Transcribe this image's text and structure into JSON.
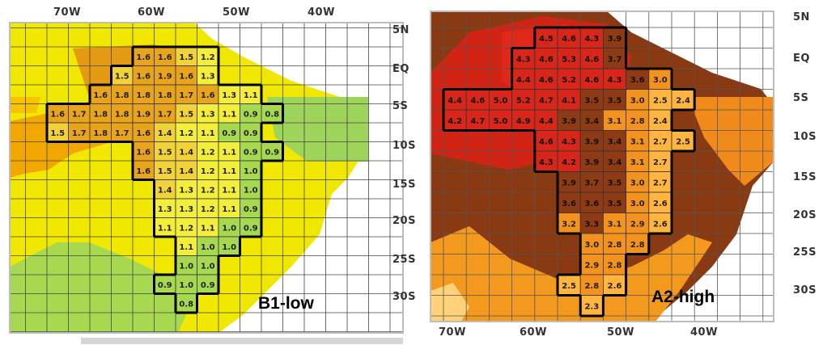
{
  "colors": {
    "b1_background": [
      "#f0e800",
      "#f4b400",
      "#d98d1a",
      "#9bd45a",
      "#ffffff"
    ],
    "b1_cell_colors": {
      "1.6+": "#e9a41e",
      "1.4-1.5": "#f2d23a",
      "1.1-1.3": "#f3ee3c",
      "<=1.0": "#a6d94f"
    },
    "a2_background": [
      "#d22414",
      "#8a3a12",
      "#f08a1a",
      "#ffb020",
      "#ffffff"
    ],
    "a2_cell_colors": {
      "4.0+": "#d8261a",
      "3.3-3.9": "#8e3a14",
      "2.8-3.2": "#f3921e",
      "<=2.7": "#ffb540"
    },
    "grid_line": "#333333",
    "border": "#000000"
  },
  "maps": [
    {
      "label": "B1-low",
      "lon_labels": [
        "70W",
        "60W",
        "50W",
        "40W"
      ],
      "lat_labels": [
        "5N",
        "EQ",
        "5S",
        "10S",
        "15S",
        "20S",
        "25S",
        "30S"
      ],
      "cells": [
        {
          "row": 0,
          "col": 4,
          "value": "1.6"
        },
        {
          "row": 0,
          "col": 5,
          "value": "1.6"
        },
        {
          "row": 0,
          "col": 6,
          "value": "1.5"
        },
        {
          "row": 0,
          "col": 7,
          "value": "1.2"
        },
        {
          "row": 1,
          "col": 3,
          "value": "1.5"
        },
        {
          "row": 1,
          "col": 4,
          "value": "1.6"
        },
        {
          "row": 1,
          "col": 5,
          "value": "1.9"
        },
        {
          "row": 1,
          "col": 6,
          "value": "1.6"
        },
        {
          "row": 1,
          "col": 7,
          "value": "1.3"
        },
        {
          "row": 2,
          "col": 2,
          "value": "1.6"
        },
        {
          "row": 2,
          "col": 3,
          "value": "1.8"
        },
        {
          "row": 2,
          "col": 4,
          "value": "1.8"
        },
        {
          "row": 2,
          "col": 5,
          "value": "1.8"
        },
        {
          "row": 2,
          "col": 6,
          "value": "1.7"
        },
        {
          "row": 2,
          "col": 7,
          "value": "1.6"
        },
        {
          "row": 2,
          "col": 8,
          "value": "1.3"
        },
        {
          "row": 2,
          "col": 9,
          "value": "1.1"
        },
        {
          "row": 3,
          "col": 0,
          "value": "1.6"
        },
        {
          "row": 3,
          "col": 1,
          "value": "1.7"
        },
        {
          "row": 3,
          "col": 2,
          "value": "1.8"
        },
        {
          "row": 3,
          "col": 3,
          "value": "1.8"
        },
        {
          "row": 3,
          "col": 4,
          "value": "1.9"
        },
        {
          "row": 3,
          "col": 5,
          "value": "1.7"
        },
        {
          "row": 3,
          "col": 6,
          "value": "1.5"
        },
        {
          "row": 3,
          "col": 7,
          "value": "1.3"
        },
        {
          "row": 3,
          "col": 8,
          "value": "1.1"
        },
        {
          "row": 3,
          "col": 9,
          "value": "0.9"
        },
        {
          "row": 3,
          "col": 10,
          "value": "0.8"
        },
        {
          "row": 4,
          "col": 0,
          "value": "1.5"
        },
        {
          "row": 4,
          "col": 1,
          "value": "1.7"
        },
        {
          "row": 4,
          "col": 2,
          "value": "1.8"
        },
        {
          "row": 4,
          "col": 3,
          "value": "1.7"
        },
        {
          "row": 4,
          "col": 4,
          "value": "1.6"
        },
        {
          "row": 4,
          "col": 5,
          "value": "1.4"
        },
        {
          "row": 4,
          "col": 6,
          "value": "1.2"
        },
        {
          "row": 4,
          "col": 7,
          "value": "1.1"
        },
        {
          "row": 4,
          "col": 8,
          "value": "0.9"
        },
        {
          "row": 4,
          "col": 9,
          "value": "0.9"
        },
        {
          "row": 5,
          "col": 4,
          "value": "1.6"
        },
        {
          "row": 5,
          "col": 5,
          "value": "1.5"
        },
        {
          "row": 5,
          "col": 6,
          "value": "1.4"
        },
        {
          "row": 5,
          "col": 7,
          "value": "1.2"
        },
        {
          "row": 5,
          "col": 8,
          "value": "1.1"
        },
        {
          "row": 5,
          "col": 9,
          "value": "0.9"
        },
        {
          "row": 5,
          "col": 10,
          "value": "0.9"
        },
        {
          "row": 6,
          "col": 4,
          "value": "1.6"
        },
        {
          "row": 6,
          "col": 5,
          "value": "1.5"
        },
        {
          "row": 6,
          "col": 6,
          "value": "1.4"
        },
        {
          "row": 6,
          "col": 7,
          "value": "1.2"
        },
        {
          "row": 6,
          "col": 8,
          "value": "1.1"
        },
        {
          "row": 6,
          "col": 9,
          "value": "1.0"
        },
        {
          "row": 7,
          "col": 5,
          "value": "1.4"
        },
        {
          "row": 7,
          "col": 6,
          "value": "1.3"
        },
        {
          "row": 7,
          "col": 7,
          "value": "1.2"
        },
        {
          "row": 7,
          "col": 8,
          "value": "1.1"
        },
        {
          "row": 7,
          "col": 9,
          "value": "1.0"
        },
        {
          "row": 8,
          "col": 5,
          "value": "1.3"
        },
        {
          "row": 8,
          "col": 6,
          "value": "1.3"
        },
        {
          "row": 8,
          "col": 7,
          "value": "1.2"
        },
        {
          "row": 8,
          "col": 8,
          "value": "1.1"
        },
        {
          "row": 8,
          "col": 9,
          "value": "0.9"
        },
        {
          "row": 9,
          "col": 5,
          "value": "1.1"
        },
        {
          "row": 9,
          "col": 6,
          "value": "1.2"
        },
        {
          "row": 9,
          "col": 7,
          "value": "1.1"
        },
        {
          "row": 9,
          "col": 8,
          "value": "1.0"
        },
        {
          "row": 9,
          "col": 9,
          "value": "0.9"
        },
        {
          "row": 10,
          "col": 6,
          "value": "1.1"
        },
        {
          "row": 10,
          "col": 7,
          "value": "1.0"
        },
        {
          "row": 10,
          "col": 8,
          "value": "1.0"
        },
        {
          "row": 11,
          "col": 6,
          "value": "1.0"
        },
        {
          "row": 11,
          "col": 7,
          "value": "1.0"
        },
        {
          "row": 12,
          "col": 5,
          "value": "0.9"
        },
        {
          "row": 12,
          "col": 6,
          "value": "1.0"
        },
        {
          "row": 12,
          "col": 7,
          "value": "0.9"
        },
        {
          "row": 13,
          "col": 6,
          "value": "0.8"
        }
      ]
    },
    {
      "label": "A2-high",
      "lon_labels": [
        "70W",
        "60W",
        "50W",
        "40W"
      ],
      "lat_labels": [
        "5N",
        "EQ",
        "5S",
        "10S",
        "15S",
        "20S",
        "25S",
        "30S"
      ],
      "cells": [
        {
          "row": 0,
          "col": 4,
          "value": "4.5"
        },
        {
          "row": 0,
          "col": 5,
          "value": "4.6"
        },
        {
          "row": 0,
          "col": 6,
          "value": "4.3"
        },
        {
          "row": 0,
          "col": 7,
          "value": "3.9"
        },
        {
          "row": 1,
          "col": 3,
          "value": "4.3"
        },
        {
          "row": 1,
          "col": 4,
          "value": "4.6"
        },
        {
          "row": 1,
          "col": 5,
          "value": "5.3"
        },
        {
          "row": 1,
          "col": 6,
          "value": "4.6"
        },
        {
          "row": 1,
          "col": 7,
          "value": "3.7"
        },
        {
          "row": 2,
          "col": 3,
          "value": "4.4"
        },
        {
          "row": 2,
          "col": 4,
          "value": "4.6"
        },
        {
          "row": 2,
          "col": 5,
          "value": "5.2"
        },
        {
          "row": 2,
          "col": 6,
          "value": "4.6"
        },
        {
          "row": 2,
          "col": 7,
          "value": "4.3"
        },
        {
          "row": 2,
          "col": 8,
          "value": "3.6"
        },
        {
          "row": 2,
          "col": 9,
          "value": "3.0"
        },
        {
          "row": 3,
          "col": 0,
          "value": "4.4"
        },
        {
          "row": 3,
          "col": 1,
          "value": "4.6"
        },
        {
          "row": 3,
          "col": 2,
          "value": "5.0"
        },
        {
          "row": 3,
          "col": 3,
          "value": "5.2"
        },
        {
          "row": 3,
          "col": 4,
          "value": "4.7"
        },
        {
          "row": 3,
          "col": 5,
          "value": "4.1"
        },
        {
          "row": 3,
          "col": 6,
          "value": "3.5"
        },
        {
          "row": 3,
          "col": 7,
          "value": "3.5"
        },
        {
          "row": 3,
          "col": 8,
          "value": "3.0"
        },
        {
          "row": 3,
          "col": 9,
          "value": "2.5"
        },
        {
          "row": 3,
          "col": 10,
          "value": "2.4"
        },
        {
          "row": 4,
          "col": 0,
          "value": "4.2"
        },
        {
          "row": 4,
          "col": 1,
          "value": "4.7"
        },
        {
          "row": 4,
          "col": 2,
          "value": "5.0"
        },
        {
          "row": 4,
          "col": 3,
          "value": "4.9"
        },
        {
          "row": 4,
          "col": 4,
          "value": "4.4"
        },
        {
          "row": 4,
          "col": 5,
          "value": "3.9"
        },
        {
          "row": 4,
          "col": 6,
          "value": "3.4"
        },
        {
          "row": 4,
          "col": 7,
          "value": "3.1"
        },
        {
          "row": 4,
          "col": 8,
          "value": "2.8"
        },
        {
          "row": 4,
          "col": 9,
          "value": "2.4"
        },
        {
          "row": 5,
          "col": 4,
          "value": "4.6"
        },
        {
          "row": 5,
          "col": 5,
          "value": "4.3"
        },
        {
          "row": 5,
          "col": 6,
          "value": "3.9"
        },
        {
          "row": 5,
          "col": 7,
          "value": "3.4"
        },
        {
          "row": 5,
          "col": 8,
          "value": "3.1"
        },
        {
          "row": 5,
          "col": 9,
          "value": "2.7"
        },
        {
          "row": 5,
          "col": 10,
          "value": "2.5"
        },
        {
          "row": 6,
          "col": 4,
          "value": "4.3"
        },
        {
          "row": 6,
          "col": 5,
          "value": "4.2"
        },
        {
          "row": 6,
          "col": 6,
          "value": "3.9"
        },
        {
          "row": 6,
          "col": 7,
          "value": "3.4"
        },
        {
          "row": 6,
          "col": 8,
          "value": "3.1"
        },
        {
          "row": 6,
          "col": 9,
          "value": "2.7"
        },
        {
          "row": 7,
          "col": 5,
          "value": "3.9"
        },
        {
          "row": 7,
          "col": 6,
          "value": "3.7"
        },
        {
          "row": 7,
          "col": 7,
          "value": "3.5"
        },
        {
          "row": 7,
          "col": 8,
          "value": "3.0"
        },
        {
          "row": 7,
          "col": 9,
          "value": "2.7"
        },
        {
          "row": 8,
          "col": 5,
          "value": "3.6"
        },
        {
          "row": 8,
          "col": 6,
          "value": "3.6"
        },
        {
          "row": 8,
          "col": 7,
          "value": "3.5"
        },
        {
          "row": 8,
          "col": 8,
          "value": "3.0"
        },
        {
          "row": 8,
          "col": 9,
          "value": "2.6"
        },
        {
          "row": 9,
          "col": 5,
          "value": "3.2"
        },
        {
          "row": 9,
          "col": 6,
          "value": "3.3"
        },
        {
          "row": 9,
          "col": 7,
          "value": "3.1"
        },
        {
          "row": 9,
          "col": 8,
          "value": "2.9"
        },
        {
          "row": 9,
          "col": 9,
          "value": "2.6"
        },
        {
          "row": 10,
          "col": 6,
          "value": "3.0"
        },
        {
          "row": 10,
          "col": 7,
          "value": "2.8"
        },
        {
          "row": 10,
          "col": 8,
          "value": "2.8"
        },
        {
          "row": 11,
          "col": 6,
          "value": "2.9"
        },
        {
          "row": 11,
          "col": 7,
          "value": "2.8"
        },
        {
          "row": 12,
          "col": 5,
          "value": "2.5"
        },
        {
          "row": 12,
          "col": 6,
          "value": "2.8"
        },
        {
          "row": 12,
          "col": 7,
          "value": "2.6"
        },
        {
          "row": 13,
          "col": 6,
          "value": "2.3"
        }
      ]
    }
  ]
}
